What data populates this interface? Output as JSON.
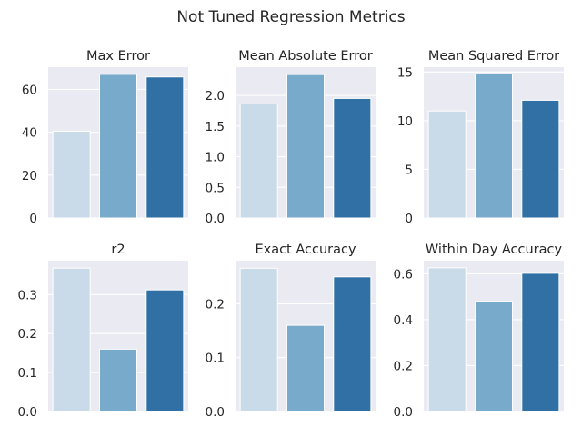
{
  "figure": {
    "title": "Not Tuned Regression Metrics"
  },
  "colors": {
    "background": "#ffffff",
    "plot_background": "#eaeaf2",
    "grid": "#ffffff",
    "text": "#262626",
    "palette": [
      "#c9dbe9",
      "#77aacb",
      "#3170a5"
    ]
  },
  "chart_data": [
    {
      "type": "bar",
      "title": "Max Error",
      "categories": [
        "",
        "",
        ""
      ],
      "values": [
        40.5,
        67.0,
        65.8
      ],
      "ylim": [
        0,
        70.35
      ],
      "yticks": [
        0,
        20,
        40,
        60
      ],
      "ytick_labels": [
        "0",
        "20",
        "40",
        "60"
      ],
      "grid": true
    },
    {
      "type": "bar",
      "title": "Mean Absolute Error",
      "categories": [
        "",
        "",
        ""
      ],
      "values": [
        1.86,
        2.34,
        1.95
      ],
      "ylim": [
        0,
        2.46
      ],
      "yticks": [
        0,
        0.5,
        1.0,
        1.5,
        2.0
      ],
      "ytick_labels": [
        "0.0",
        "0.5",
        "1.0",
        "1.5",
        "2.0"
      ],
      "grid": true
    },
    {
      "type": "bar",
      "title": "Mean Squared Error",
      "categories": [
        "",
        "",
        ""
      ],
      "values": [
        11.0,
        14.8,
        12.1
      ],
      "ylim": [
        0,
        15.5
      ],
      "yticks": [
        0,
        5,
        10,
        15
      ],
      "ytick_labels": [
        "0",
        "5",
        "10",
        "15"
      ],
      "grid": true
    },
    {
      "type": "bar",
      "title": "r2",
      "categories": [
        "",
        "",
        ""
      ],
      "values": [
        0.368,
        0.16,
        0.312
      ],
      "ylim": [
        0,
        0.387
      ],
      "yticks": [
        0,
        0.1,
        0.2,
        0.3
      ],
      "ytick_labels": [
        "0.0",
        "0.1",
        "0.2",
        "0.3"
      ],
      "grid": true
    },
    {
      "type": "bar",
      "title": "Exact Accuracy",
      "categories": [
        "",
        "",
        ""
      ],
      "values": [
        0.266,
        0.16,
        0.25
      ],
      "ylim": [
        0,
        0.28
      ],
      "yticks": [
        0,
        0.1,
        0.2
      ],
      "ytick_labels": [
        "0.0",
        "0.1",
        "0.2"
      ],
      "grid": true
    },
    {
      "type": "bar",
      "title": "Within Day Accuracy",
      "categories": [
        "",
        "",
        ""
      ],
      "values": [
        0.626,
        0.48,
        0.602
      ],
      "ylim": [
        0,
        0.657
      ],
      "yticks": [
        0,
        0.2,
        0.4,
        0.6
      ],
      "ytick_labels": [
        "0.0",
        "0.2",
        "0.4",
        "0.6"
      ],
      "grid": true
    }
  ]
}
